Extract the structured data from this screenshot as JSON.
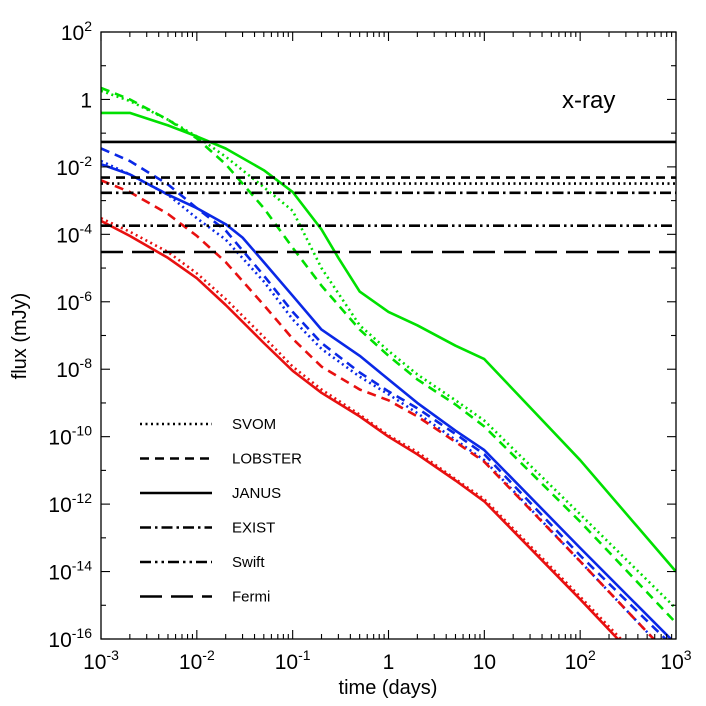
{
  "chart_data": {
    "type": "line",
    "title": "",
    "xlabel": "time (days)",
    "ylabel": "flux (mJy)",
    "xscale": "log",
    "yscale": "log",
    "xlim": [
      0.001,
      1000
    ],
    "ylim": [
      1e-16,
      100
    ],
    "grid": false,
    "legend_position": "lower-left",
    "annotation": "x-ray",
    "x_ticks": [
      {
        "value": 0.001,
        "base": "10",
        "exp": "-3"
      },
      {
        "value": 0.01,
        "base": "10",
        "exp": "-2"
      },
      {
        "value": 0.1,
        "base": "10",
        "exp": "-1"
      },
      {
        "value": 1,
        "base": "1",
        "exp": ""
      },
      {
        "value": 10,
        "base": "10",
        "exp": ""
      },
      {
        "value": 100,
        "base": "10",
        "exp": "2"
      },
      {
        "value": 1000,
        "base": "10",
        "exp": "3"
      }
    ],
    "y_ticks": [
      {
        "value": 1e-16,
        "base": "10",
        "exp": "-16"
      },
      {
        "value": 1e-14,
        "base": "10",
        "exp": "-14"
      },
      {
        "value": 1e-12,
        "base": "10",
        "exp": "-12"
      },
      {
        "value": 1e-10,
        "base": "10",
        "exp": "-10"
      },
      {
        "value": 1e-08,
        "base": "10",
        "exp": "-8"
      },
      {
        "value": 1e-06,
        "base": "10",
        "exp": "-6"
      },
      {
        "value": 0.0001,
        "base": "10",
        "exp": "-4"
      },
      {
        "value": 0.01,
        "base": "10",
        "exp": "-2"
      },
      {
        "value": 1,
        "base": "1",
        "exp": ""
      },
      {
        "value": 100,
        "base": "10",
        "exp": "2"
      }
    ],
    "legend": [
      {
        "name": "SVOM",
        "dash": "dotted"
      },
      {
        "name": "LOBSTER",
        "dash": "dashed"
      },
      {
        "name": "JANUS",
        "dash": "solid"
      },
      {
        "name": "EXIST",
        "dash": "dashdot"
      },
      {
        "name": "Swift",
        "dash": "dashdotdot"
      },
      {
        "name": "Fermi",
        "dash": "longdash"
      }
    ],
    "thresholds": [
      {
        "instrument": "JANUS",
        "dash": "solid",
        "y": 0.055
      },
      {
        "instrument": "SVOM",
        "dash": "dotted",
        "y": 0.0032
      },
      {
        "instrument": "LOBSTER",
        "dash": "dashed",
        "y": 0.0048
      },
      {
        "instrument": "EXIST",
        "dash": "dashdot",
        "y": 0.0017
      },
      {
        "instrument": "Swift",
        "dash": "dashdotdot",
        "y": 0.00018
      },
      {
        "instrument": "Fermi",
        "dash": "longdash",
        "y": 3e-05
      }
    ],
    "series": [
      {
        "color": "#00e000",
        "dash": "solid",
        "x": [
          0.001,
          0.002,
          0.005,
          0.01,
          0.02,
          0.05,
          0.1,
          0.2,
          0.3,
          0.5,
          1,
          2,
          5,
          10,
          100,
          1000
        ],
        "y": [
          0.4,
          0.4,
          0.17,
          0.08,
          0.035,
          0.008,
          0.0018,
          0.00014,
          2e-05,
          2e-06,
          5e-07,
          2e-07,
          5e-08,
          2e-08,
          2e-11,
          1e-14
        ]
      },
      {
        "color": "#00e000",
        "dash": "dotted",
        "x": [
          0.001,
          0.002,
          0.005,
          0.01,
          0.02,
          0.05,
          0.1,
          0.2,
          0.5,
          1,
          2,
          5,
          10,
          100,
          1000
        ],
        "y": [
          1.8,
          0.9,
          0.25,
          0.08,
          0.02,
          0.0025,
          0.0005,
          1e-05,
          2e-07,
          3.5e-08,
          7e-09,
          1.2e-09,
          3e-10,
          5e-13,
          8e-16
        ]
      },
      {
        "color": "#00e000",
        "dash": "dashed",
        "x": [
          0.001,
          0.002,
          0.005,
          0.01,
          0.02,
          0.05,
          0.1,
          0.2,
          0.5,
          1,
          2,
          5,
          10,
          100,
          1000
        ],
        "y": [
          2.2,
          1.0,
          0.25,
          0.07,
          0.012,
          0.0006,
          4e-05,
          3e-06,
          1.5e-07,
          2.5e-08,
          5e-09,
          9e-10,
          2e-10,
          3e-13,
          3e-16
        ]
      },
      {
        "color": "#0a28e6",
        "dash": "solid",
        "x": [
          0.001,
          0.002,
          0.005,
          0.01,
          0.02,
          0.03,
          0.05,
          0.1,
          0.2,
          0.5,
          1,
          2,
          5,
          10,
          100,
          1000
        ],
        "y": [
          0.012,
          0.006,
          0.0015,
          0.0006,
          0.0002,
          8e-05,
          1.5e-05,
          1.5e-06,
          1.5e-07,
          2.5e-08,
          5e-09,
          1e-09,
          1.5e-10,
          4e-11,
          5e-14,
          7e-17
        ]
      },
      {
        "color": "#0a28e6",
        "dash": "dashed",
        "x": [
          0.001,
          0.002,
          0.005,
          0.01,
          0.02,
          0.05,
          0.1,
          0.2,
          0.5,
          1,
          2,
          5,
          10,
          100,
          1000
        ],
        "y": [
          0.035,
          0.015,
          0.003,
          0.0006,
          0.00013,
          6e-06,
          5e-07,
          6e-08,
          8e-09,
          2.2e-09,
          7e-10,
          1.2e-10,
          3e-11,
          3e-14,
          5e-17
        ]
      },
      {
        "color": "#0a28e6",
        "dash": "dotted",
        "x": [
          0.001,
          0.002,
          0.005,
          0.01,
          0.02,
          0.05,
          0.1,
          0.2,
          0.5,
          1,
          2,
          5,
          10,
          100,
          1000
        ],
        "y": [
          0.015,
          0.006,
          0.0015,
          0.0003,
          7e-05,
          4e-06,
          3e-07,
          4e-08,
          6e-09,
          1.8e-09,
          5e-10,
          8e-11,
          2e-11,
          2e-14,
          2e-17
        ]
      },
      {
        "color": "#e81010",
        "dash": "solid",
        "x": [
          0.001,
          0.002,
          0.005,
          0.01,
          0.02,
          0.05,
          0.1,
          0.2,
          0.5,
          1,
          2,
          5,
          10,
          100,
          1000
        ],
        "y": [
          0.00025,
          9e-05,
          2e-05,
          5e-06,
          8e-07,
          6e-08,
          9e-09,
          2e-09,
          4e-10,
          1e-10,
          3e-11,
          5e-12,
          1.2e-12,
          1.5e-15,
          1.5e-18
        ]
      },
      {
        "color": "#e81010",
        "dash": "dotted",
        "x": [
          0.001,
          0.002,
          0.005,
          0.01,
          0.02,
          0.05,
          0.1,
          0.2,
          0.5,
          1,
          2,
          5,
          10,
          100,
          1000
        ],
        "y": [
          0.0003,
          0.00012,
          3e-05,
          7e-06,
          1.2e-06,
          9e-08,
          1.2e-08,
          2.5e-09,
          4.5e-10,
          1.1e-10,
          3.5e-11,
          5.5e-12,
          1.4e-12,
          1.8e-15,
          2e-18
        ]
      },
      {
        "color": "#e81010",
        "dash": "dashed",
        "x": [
          0.001,
          0.002,
          0.005,
          0.01,
          0.02,
          0.05,
          0.1,
          0.2,
          0.5,
          1,
          2,
          5,
          10,
          100,
          1000
        ],
        "y": [
          0.004,
          0.0018,
          0.0004,
          9e-05,
          1.5e-05,
          8e-07,
          8e-08,
          1.2e-08,
          2.5e-09,
          1.2e-09,
          4e-10,
          7e-11,
          1.8e-11,
          2e-14,
          2e-17
        ]
      }
    ]
  }
}
